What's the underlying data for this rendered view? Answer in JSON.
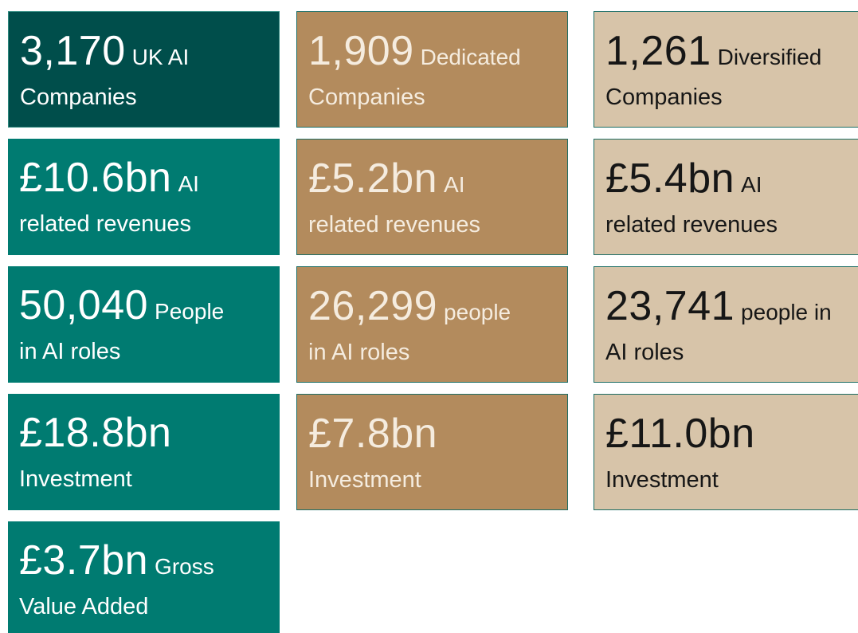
{
  "columns": [
    {
      "tiles": [
        {
          "figure": "3,170",
          "suffix": "UK AI",
          "second_line": "Companies"
        },
        {
          "figure": "£10.6bn",
          "suffix": "AI",
          "second_line": "related revenues"
        },
        {
          "figure": "50,040",
          "suffix": "People",
          "second_line": "in AI roles"
        },
        {
          "figure": "£18.8bn",
          "second_line": "Investment"
        },
        {
          "figure": "£3.7bn",
          "suffix": "Gross",
          "second_line": "Value Added"
        }
      ]
    },
    {
      "tiles": [
        {
          "figure": "1,909",
          "suffix": "Dedicated",
          "second_line": "Companies"
        },
        {
          "figure": "£5.2bn",
          "suffix": "AI",
          "second_line": "related revenues"
        },
        {
          "figure": "26,299",
          "suffix": "people",
          "second_line": "in AI roles"
        },
        {
          "figure": "£7.8bn",
          "second_line": "Investment"
        }
      ]
    },
    {
      "tiles": [
        {
          "figure": "1,261",
          "suffix": "Diversified",
          "second_line": "Companies"
        },
        {
          "figure": "£5.4bn",
          "suffix": "AI",
          "second_line": "related revenues"
        },
        {
          "figure": "23,741",
          "suffix": "people in",
          "second_line": "AI roles"
        },
        {
          "figure": "£11.0bn",
          "second_line": "Investment"
        }
      ]
    }
  ]
}
